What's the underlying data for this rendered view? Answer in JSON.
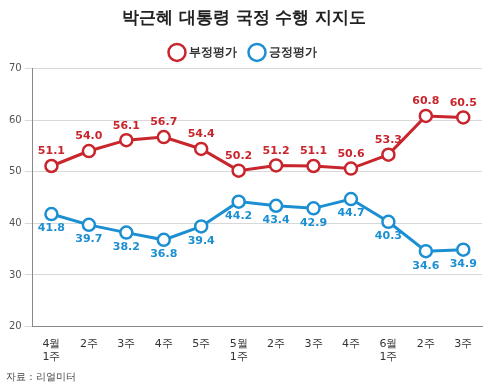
{
  "chart_data": {
    "type": "line",
    "title": "박근혜 대통령 국정 수행 지지도",
    "source": "자료 : 리얼미터",
    "categories": [
      "4월 1주",
      "2주",
      "3주",
      "4주",
      "5주",
      "5월 1주",
      "2주",
      "3주",
      "4주",
      "6월 1주",
      "2주",
      "3주"
    ],
    "series": [
      {
        "name": "부정평가",
        "color": "#c9252c",
        "marker": "circle",
        "line_style": "solid",
        "values": [
          51.1,
          54.0,
          56.1,
          56.7,
          54.4,
          50.2,
          51.2,
          51.1,
          50.6,
          53.3,
          60.8,
          60.5
        ],
        "value_labels": [
          "51.1",
          "54.0",
          "56.1",
          "56.7",
          "54.4",
          "50.2",
          "51.2",
          "51.1",
          "50.6",
          "53.3",
          "60.8",
          "60.5"
        ]
      },
      {
        "name": "긍정평가",
        "color": "#1b8fd2",
        "marker": "circle",
        "line_style": "solid",
        "values": [
          41.8,
          39.7,
          38.2,
          36.8,
          39.4,
          44.2,
          43.4,
          42.9,
          44.7,
          40.3,
          34.6,
          34.9
        ],
        "value_labels": [
          "41.8",
          "39.7",
          "38.2",
          "36.8",
          "39.4",
          "44.2",
          "43.4",
          "42.9",
          "44.7",
          "40.3",
          "34.6",
          "34.9"
        ]
      }
    ],
    "ylim": [
      20,
      70
    ],
    "yticks": [
      20,
      30,
      40,
      50,
      60,
      70
    ],
    "grid": true,
    "legend": "top",
    "data_labels": true
  }
}
